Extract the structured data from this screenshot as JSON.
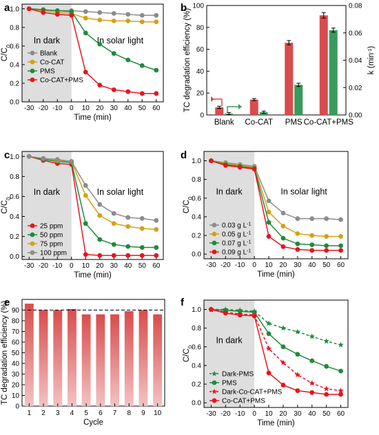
{
  "chart_data": [
    {
      "id": "a",
      "panel_label": "a",
      "type": "line",
      "x": [
        -30,
        -20,
        -10,
        0,
        10,
        20,
        30,
        40,
        50,
        60
      ],
      "xlabel": "Time (min)",
      "ylabel": "C/C0",
      "xlim": [
        -35,
        65
      ],
      "ylim": [
        0.0,
        1.05
      ],
      "xticks": [
        "-30",
        "-20",
        "-10",
        "0",
        "10",
        "20",
        "30",
        "40",
        "50",
        "60"
      ],
      "yticks": [
        "0.0",
        "0.2",
        "0.4",
        "0.6",
        "0.8",
        "1.0"
      ],
      "dark_label": "In dark",
      "light_label": "In solar light",
      "legend": "left",
      "series": [
        {
          "name": "Blank",
          "color": "#8c8c8c",
          "values": [
            1.0,
            0.99,
            0.98,
            0.98,
            0.97,
            0.96,
            0.95,
            0.94,
            0.93,
            0.93
          ]
        },
        {
          "name": "Co-CAT",
          "color": "#d4a017",
          "values": [
            1.0,
            0.98,
            0.96,
            0.95,
            0.9,
            0.88,
            0.87,
            0.87,
            0.86,
            0.86
          ]
        },
        {
          "name": "PMS",
          "color": "#1f8a3c",
          "values": [
            1.0,
            0.99,
            0.98,
            0.97,
            0.74,
            0.62,
            0.52,
            0.45,
            0.39,
            0.34
          ]
        },
        {
          "name": "Co-CAT+PMS",
          "color": "#e8141e",
          "values": [
            1.0,
            0.96,
            0.94,
            0.93,
            0.32,
            0.18,
            0.13,
            0.11,
            0.09,
            0.09
          ]
        }
      ]
    },
    {
      "id": "b",
      "panel_label": "b",
      "type": "bar",
      "categories": [
        "Blank",
        "Co-CAT",
        "PMS",
        "Co-CAT+PMS"
      ],
      "ylabel": "TC degradation efficiency (%)",
      "ylabel2": "k (min-1)",
      "ylim": [
        0,
        100
      ],
      "ylim2": [
        0,
        0.08
      ],
      "yticks": [
        "0",
        "20",
        "40",
        "60",
        "80",
        "100"
      ],
      "yticks2": [
        "0.00",
        "0.02",
        "0.04",
        "0.06",
        "0.08"
      ],
      "series": [
        {
          "name": "TC degradation efficiency",
          "color": "#d94c4c",
          "axis": "left",
          "values": [
            7,
            14,
            66,
            91
          ],
          "errors": [
            1,
            1,
            2,
            2.5
          ]
        },
        {
          "name": "k",
          "color": "#3a9a5b",
          "axis": "right",
          "values": [
            0.001,
            0.002,
            0.022,
            0.062
          ],
          "errors": [
            0.0008,
            0.0008,
            0.0012,
            0.0015
          ]
        }
      ]
    },
    {
      "id": "c",
      "panel_label": "c",
      "type": "line",
      "x": [
        -30,
        -20,
        -10,
        0,
        10,
        20,
        30,
        40,
        50,
        60
      ],
      "xlabel": "Time (min)",
      "ylabel": "C/C0",
      "xlim": [
        -35,
        65
      ],
      "ylim": [
        -0.03,
        1.05
      ],
      "xticks": [
        "-30",
        "-20",
        "-10",
        "0",
        "10",
        "20",
        "30",
        "40",
        "50",
        "60"
      ],
      "yticks": [
        "0.0",
        "0.2",
        "0.4",
        "0.6",
        "0.8",
        "1.0"
      ],
      "dark_label": "In dark",
      "light_label": "In solar light",
      "legend": "bottom-left",
      "series": [
        {
          "name": "25 ppm",
          "color": "#e8141e",
          "values": [
            1.0,
            0.96,
            0.93,
            0.92,
            0.02,
            0.01,
            0.01,
            0.01,
            0.01,
            0.01
          ]
        },
        {
          "name": "50 ppm",
          "color": "#1f8a3c",
          "values": [
            1.0,
            0.97,
            0.95,
            0.94,
            0.33,
            0.17,
            0.12,
            0.1,
            0.09,
            0.09
          ]
        },
        {
          "name": "75 ppm",
          "color": "#d4a017",
          "values": [
            1.0,
            0.98,
            0.96,
            0.95,
            0.61,
            0.41,
            0.33,
            0.3,
            0.28,
            0.27
          ]
        },
        {
          "name": "100 ppm",
          "color": "#8c8c8c",
          "values": [
            1.0,
            0.98,
            0.97,
            0.95,
            0.71,
            0.52,
            0.43,
            0.39,
            0.38,
            0.36
          ]
        }
      ]
    },
    {
      "id": "d",
      "panel_label": "d",
      "type": "line",
      "x": [
        -30,
        -20,
        -10,
        0,
        10,
        20,
        30,
        40,
        50,
        60
      ],
      "xlabel": "Time (min)",
      "ylabel": "C/C0",
      "xlim": [
        -35,
        65
      ],
      "ylim": [
        -0.05,
        1.1
      ],
      "xticks": [
        "-30",
        "-20",
        "-10",
        "0",
        "10",
        "20",
        "30",
        "40",
        "50",
        "60"
      ],
      "yticks": [
        "0.0",
        "0.2",
        "0.4",
        "0.6",
        "0.8",
        "1.0"
      ],
      "dark_label": "In dark",
      "light_label": "In solar light",
      "legend": "bottom-left",
      "series": [
        {
          "name": "0.03 g L-1",
          "color": "#8c8c8c",
          "values": [
            1.0,
            0.98,
            0.96,
            0.94,
            0.57,
            0.44,
            0.38,
            0.38,
            0.38,
            0.37
          ]
        },
        {
          "name": "0.05 g L-1",
          "color": "#d4a017",
          "values": [
            1.0,
            0.97,
            0.95,
            0.93,
            0.45,
            0.3,
            0.22,
            0.2,
            0.19,
            0.19
          ]
        },
        {
          "name": "0.07 g L-1",
          "color": "#1f8a3c",
          "values": [
            1.0,
            0.96,
            0.94,
            0.92,
            0.34,
            0.17,
            0.11,
            0.1,
            0.09,
            0.09
          ]
        },
        {
          "name": "0.09 g L-1",
          "color": "#e8141e",
          "values": [
            1.0,
            0.95,
            0.93,
            0.91,
            0.19,
            0.08,
            0.05,
            0.04,
            0.04,
            0.04
          ]
        }
      ]
    },
    {
      "id": "e",
      "panel_label": "e",
      "type": "bar",
      "categories": [
        "1",
        "2",
        "3",
        "4",
        "5",
        "6",
        "7",
        "8",
        "9",
        "10"
      ],
      "values": [
        96,
        90,
        90,
        91,
        86,
        86,
        86,
        89,
        90,
        86
      ],
      "xlabel": "Cycle",
      "ylabel": "TC degradation efficiency (%)",
      "ylim": [
        0,
        100
      ],
      "yticks": [
        "0",
        "10",
        "20",
        "30",
        "40",
        "50",
        "60",
        "70",
        "80",
        "90"
      ],
      "reference_line": 90,
      "colors": {
        "bar_top": "#d94c4c",
        "bar_bottom": "#f4c2c2"
      }
    },
    {
      "id": "f",
      "panel_label": "f",
      "type": "line",
      "x": [
        -30,
        -20,
        -10,
        0,
        10,
        20,
        30,
        40,
        50,
        60
      ],
      "xlabel": "Time (min)",
      "ylabel": "C/C0",
      "xlim": [
        -35,
        65
      ],
      "ylim": [
        -0.05,
        1.1
      ],
      "xticks": [
        "-30",
        "-20",
        "-10",
        "0",
        "10",
        "20",
        "30",
        "40",
        "50",
        "60"
      ],
      "yticks": [
        "0.0",
        "0.2",
        "0.4",
        "0.6",
        "0.8",
        "1.0"
      ],
      "dark_label": "In dark",
      "legend": "bottom-left",
      "series": [
        {
          "name": "Dark-PMS",
          "color": "#1f8a3c",
          "dashed": true,
          "marker": "star",
          "values": [
            1.0,
            1.0,
            0.99,
            0.98,
            0.85,
            0.8,
            0.76,
            0.71,
            0.66,
            0.62
          ]
        },
        {
          "name": "PMS",
          "color": "#1f8a3c",
          "dashed": false,
          "marker": "circle",
          "values": [
            1.0,
            0.99,
            0.98,
            0.97,
            0.74,
            0.6,
            0.52,
            0.45,
            0.39,
            0.34
          ]
        },
        {
          "name": "Dark-Co-CAT+PMS",
          "color": "#e8141e",
          "dashed": true,
          "marker": "star",
          "values": [
            1.0,
            0.97,
            0.95,
            0.94,
            0.58,
            0.43,
            0.3,
            0.21,
            0.15,
            0.13
          ]
        },
        {
          "name": "Co-CAT+PMS",
          "color": "#e8141e",
          "dashed": false,
          "marker": "circle",
          "values": [
            1.0,
            0.96,
            0.94,
            0.93,
            0.32,
            0.19,
            0.13,
            0.11,
            0.09,
            0.09
          ]
        }
      ]
    }
  ]
}
